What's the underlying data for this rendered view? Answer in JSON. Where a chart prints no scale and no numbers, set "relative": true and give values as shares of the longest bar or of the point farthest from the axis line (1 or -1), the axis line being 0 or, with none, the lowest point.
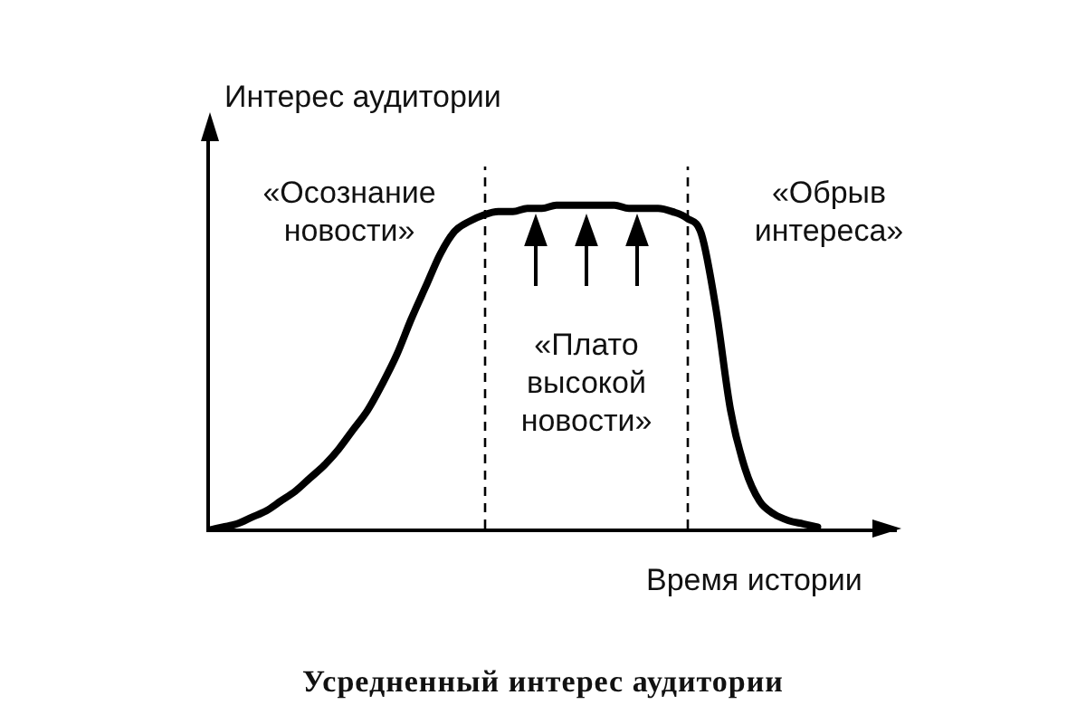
{
  "chart_data": {
    "type": "line",
    "relative": true,
    "title": "Усредненный интерес аудитории",
    "xlabel": "Время истории",
    "ylabel": "Интерес аудитории",
    "categories": [
      null,
      null,
      null,
      null,
      null,
      null,
      null,
      null,
      null,
      null,
      null,
      null,
      null,
      null,
      null,
      null,
      null,
      null,
      null,
      null,
      null,
      null,
      null,
      null,
      null,
      null,
      null,
      null,
      null,
      null,
      null,
      null,
      null,
      null,
      null,
      null,
      null,
      null,
      null,
      null,
      null,
      null,
      null
    ],
    "series": [
      {
        "color": "#000000",
        "values": [
          0,
          0.01,
          0.02,
          0.04,
          0.06,
          0.09,
          0.12,
          0.16,
          0.2,
          0.25,
          0.31,
          0.37,
          0.45,
          0.54,
          0.65,
          0.75,
          0.85,
          0.92,
          0.95,
          0.97,
          0.98,
          0.98,
          0.99,
          0.99,
          1,
          1,
          1,
          1,
          1,
          0.99,
          0.99,
          0.99,
          0.98,
          0.96,
          0.91,
          0.68,
          0.37,
          0.19,
          0.09,
          0.05,
          0.03,
          0.02,
          0.01
        ]
      }
    ],
    "annotations": [
      "«Осознание новости»",
      "«Плато высокой новости»",
      "«Обрыв интереса»"
    ],
    "marker": "none",
    "grid": false,
    "legend": false
  }
}
